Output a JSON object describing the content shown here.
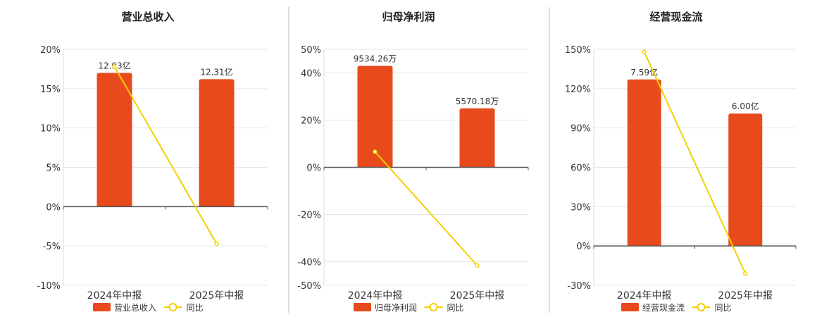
{
  "colors": {
    "bar": "#E84A1C",
    "line": "#F2D000",
    "axis": "#555555",
    "grid": "#E6E6E6",
    "divider": "#BBBBBB"
  },
  "legend_line_label": "同比",
  "chart_data": [
    {
      "type": "bar",
      "title": "营业总收入",
      "categories": [
        "2024年中报",
        "2025年中报"
      ],
      "series": [
        {
          "name": "营业总收入",
          "type": "bar",
          "values": [
            17.0,
            16.2
          ],
          "labels": [
            "12.93亿",
            "12.31亿"
          ]
        },
        {
          "name": "同比",
          "type": "line",
          "values": [
            17.8,
            -4.7
          ]
        }
      ],
      "ylim": [
        -10,
        20
      ],
      "yticks": [
        -10,
        -5,
        0,
        5,
        10,
        15,
        20
      ],
      "ytick_labels": [
        "-10%",
        "-5%",
        "0%",
        "5%",
        "10%",
        "15%",
        "20%"
      ],
      "grid": true,
      "legend": "bottom"
    },
    {
      "type": "bar",
      "title": "归母净利润",
      "categories": [
        "2024年中报",
        "2025年中报"
      ],
      "series": [
        {
          "name": "归母净利润",
          "type": "bar",
          "values": [
            43.0,
            25.0
          ],
          "labels": [
            "9534.26万",
            "5570.18万"
          ]
        },
        {
          "name": "同比",
          "type": "line",
          "values": [
            6.6,
            -41.6
          ]
        }
      ],
      "ylim": [
        -50,
        50
      ],
      "yticks": [
        -50,
        -40,
        -20,
        0,
        20,
        40,
        50
      ],
      "ytick_labels": [
        "-50%",
        "-40%",
        "-20%",
        "0%",
        "20%",
        "40%",
        "50%"
      ],
      "grid": true,
      "legend": "bottom"
    },
    {
      "type": "bar",
      "title": "经营现金流",
      "categories": [
        "2024年中报",
        "2025年中报"
      ],
      "series": [
        {
          "name": "经营现金流",
          "type": "bar",
          "values": [
            127.0,
            101.0
          ],
          "labels": [
            "7.59亿",
            "6.00亿"
          ]
        },
        {
          "name": "同比",
          "type": "line",
          "values": [
            148.0,
            -21.0
          ]
        }
      ],
      "ylim": [
        -30,
        150
      ],
      "yticks": [
        -30,
        0,
        30,
        60,
        90,
        120,
        150
      ],
      "ytick_labels": [
        "-30%",
        "0%",
        "30%",
        "60%",
        "90%",
        "120%",
        "150%"
      ],
      "grid": true,
      "legend": "bottom"
    }
  ]
}
